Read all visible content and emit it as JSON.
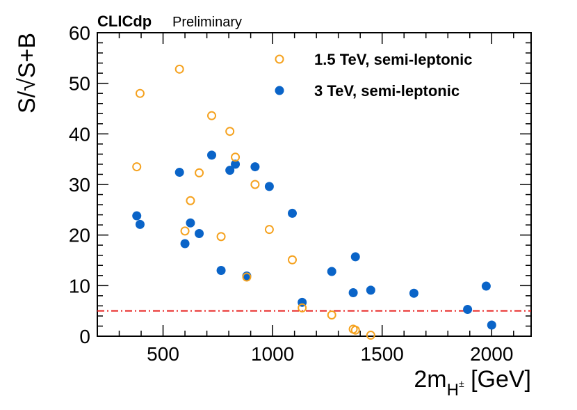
{
  "chart_data": {
    "type": "scatter",
    "title": "",
    "brand": "CLICdp",
    "brand_sub": "Preliminary",
    "xlabel": "2m",
    "xlabel_sub": "H",
    "xlabel_sup": "±",
    "xlabel_unit": " [GeV]",
    "ylabel": "S/√S+B",
    "xlim": [
      200,
      2180
    ],
    "ylim": [
      0,
      60
    ],
    "x_ticks": [
      500,
      1000,
      1500,
      2000
    ],
    "y_ticks": [
      0,
      10,
      20,
      30,
      40,
      50,
      60
    ],
    "reference_line": {
      "y": 5,
      "color": "#e8201e",
      "style": "dash-dot"
    },
    "legend_position": "top-right",
    "series": [
      {
        "name": "1.5 TeV, semi-leptonic",
        "marker": "open-circle",
        "color": "#f5a21f",
        "points": [
          [
            380,
            33.5
          ],
          [
            395,
            48
          ],
          [
            575,
            52.8
          ],
          [
            600,
            20.8
          ],
          [
            625,
            26.8
          ],
          [
            665,
            32.3
          ],
          [
            722,
            43.6
          ],
          [
            765,
            19.7
          ],
          [
            805,
            40.5
          ],
          [
            830,
            35.4
          ],
          [
            882,
            11.7
          ],
          [
            920,
            30
          ],
          [
            985,
            21.1
          ],
          [
            1090,
            15.1
          ],
          [
            1135,
            5.6
          ],
          [
            1270,
            4.2
          ],
          [
            1368,
            1.4
          ],
          [
            1378,
            1.2
          ],
          [
            1448,
            0.2
          ]
        ]
      },
      {
        "name": "3 TeV, semi-leptonic",
        "marker": "filled-circle",
        "color": "#0a64c8",
        "points": [
          [
            380,
            23.8
          ],
          [
            395,
            22.1
          ],
          [
            575,
            32.4
          ],
          [
            600,
            18.3
          ],
          [
            625,
            22.4
          ],
          [
            665,
            20.3
          ],
          [
            722,
            35.8
          ],
          [
            765,
            13
          ],
          [
            805,
            32.8
          ],
          [
            830,
            34
          ],
          [
            882,
            11.9
          ],
          [
            920,
            33.5
          ],
          [
            985,
            29.6
          ],
          [
            1090,
            24.3
          ],
          [
            1135,
            6.7
          ],
          [
            1270,
            12.8
          ],
          [
            1368,
            8.6
          ],
          [
            1378,
            15.7
          ],
          [
            1448,
            9.1
          ],
          [
            1645,
            8.5
          ],
          [
            1890,
            5.3
          ],
          [
            1975,
            9.9
          ],
          [
            2000,
            2.2
          ]
        ]
      }
    ]
  }
}
